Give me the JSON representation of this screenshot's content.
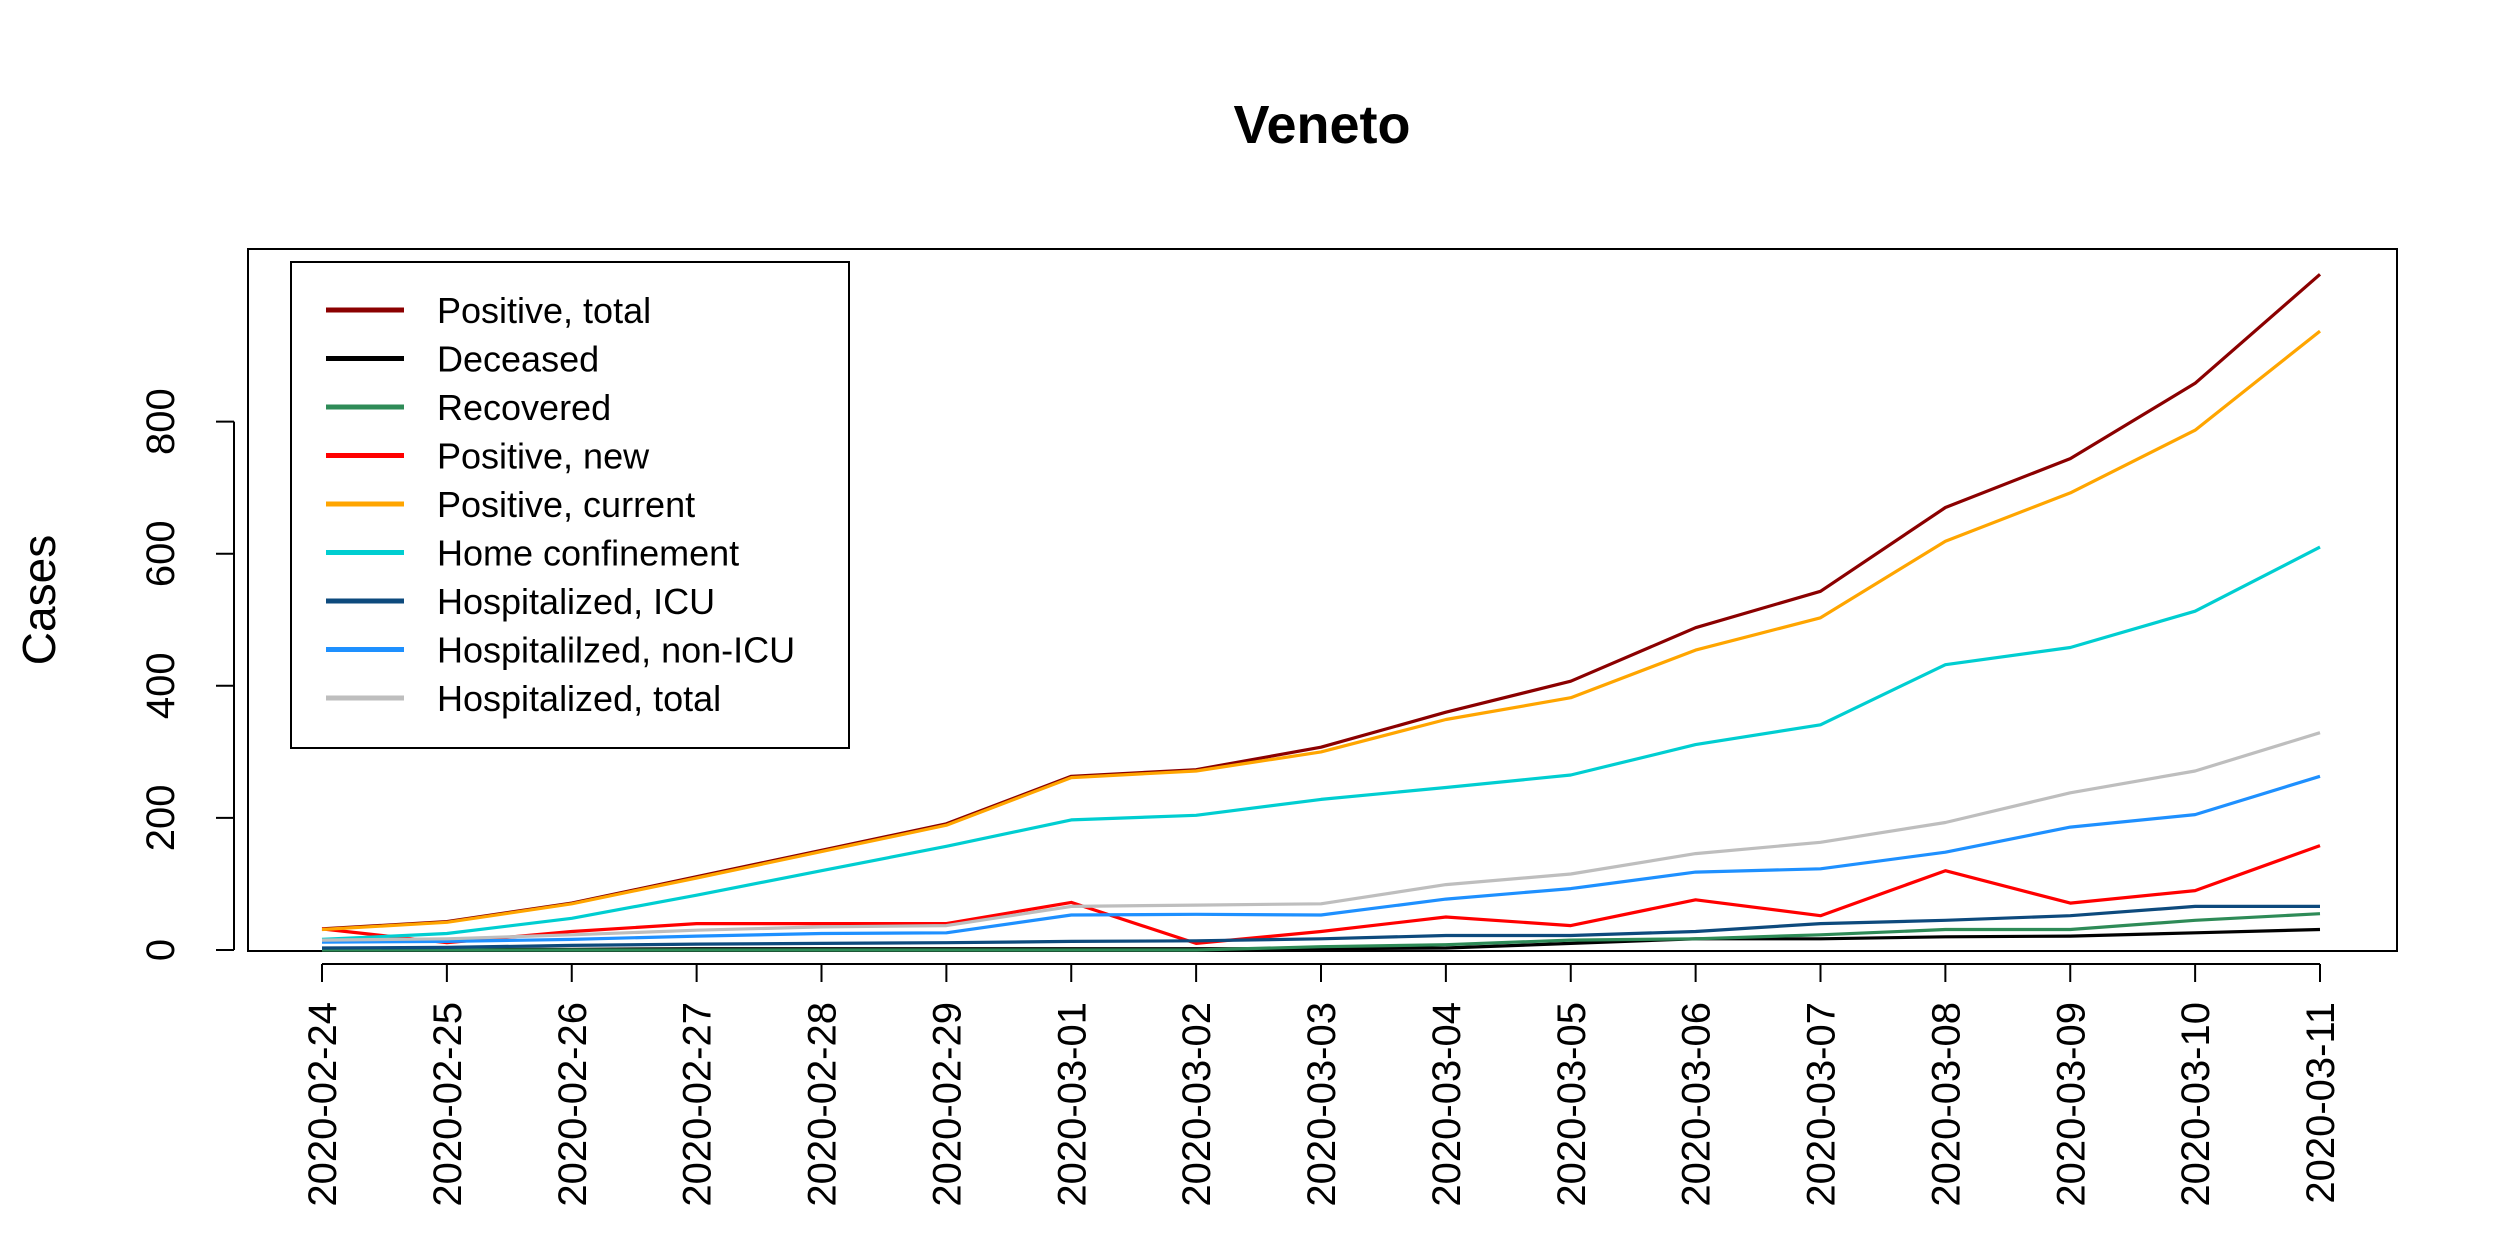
{
  "chart_data": {
    "type": "line",
    "title": "Veneto",
    "xlabel": "",
    "ylabel": "Cases",
    "x": [
      "2020-02-24",
      "2020-02-25",
      "2020-02-26",
      "2020-02-27",
      "2020-02-28",
      "2020-02-29",
      "2020-03-01",
      "2020-03-02",
      "2020-03-03",
      "2020-03-04",
      "2020-03-05",
      "2020-03-06",
      "2020-03-07",
      "2020-03-08",
      "2020-03-09",
      "2020-03-10",
      "2020-03-11"
    ],
    "yticks": [
      0,
      200,
      400,
      600,
      800
    ],
    "ylim": [
      0,
      1050
    ],
    "grid": false,
    "legend_position": "top-left",
    "series": [
      {
        "name": "Positive, total",
        "color": "#8B0000",
        "values": [
          32,
          43,
          71,
          111,
          151,
          191,
          263,
          273,
          307,
          360,
          407,
          488,
          543,
          670,
          744,
          858,
          1023
        ]
      },
      {
        "name": "Deceased",
        "color": "#000000",
        "values": [
          1,
          1,
          1,
          2,
          2,
          2,
          2,
          2,
          2,
          3,
          10,
          17,
          17,
          20,
          21,
          26,
          31
        ]
      },
      {
        "name": "Recovered",
        "color": "#2E8B57",
        "values": [
          0,
          0,
          0,
          0,
          0,
          0,
          0,
          0,
          5,
          8,
          15,
          17,
          23,
          31,
          31,
          45,
          55
        ]
      },
      {
        "name": "Positive, new",
        "color": "#FF0000",
        "values": [
          32,
          11,
          28,
          40,
          40,
          40,
          72,
          10,
          28,
          50,
          37,
          76,
          52,
          120,
          71,
          90,
          158
        ]
      },
      {
        "name": "Positive, current",
        "color": "#FFA500",
        "values": [
          31,
          42,
          70,
          109,
          149,
          189,
          261,
          271,
          300,
          349,
          382,
          454,
          503,
          619,
          692,
          787,
          937
        ]
      },
      {
        "name": "Home confinement",
        "color": "#00CED1",
        "values": [
          16,
          25,
          48,
          83,
          120,
          157,
          197,
          204,
          228,
          246,
          265,
          311,
          341,
          432,
          458,
          513,
          610
        ]
      },
      {
        "name": "Hospitalized, ICU",
        "color": "#0D4A7D",
        "values": [
          3,
          4,
          7,
          9,
          10,
          11,
          13,
          14,
          17,
          22,
          22,
          28,
          40,
          45,
          52,
          66,
          66
        ]
      },
      {
        "name": "Hospitalilzed, non-ICU",
        "color": "#1E90FF",
        "values": [
          12,
          13,
          16,
          21,
          25,
          26,
          53,
          54,
          53,
          77,
          93,
          118,
          123,
          148,
          186,
          205,
          263
        ]
      },
      {
        "name": "Hospitalized, total",
        "color": "#BEBEBE",
        "values": [
          15,
          17,
          23,
          30,
          35,
          37,
          66,
          68,
          70,
          99,
          115,
          146,
          163,
          193,
          238,
          271,
          329
        ]
      }
    ]
  }
}
